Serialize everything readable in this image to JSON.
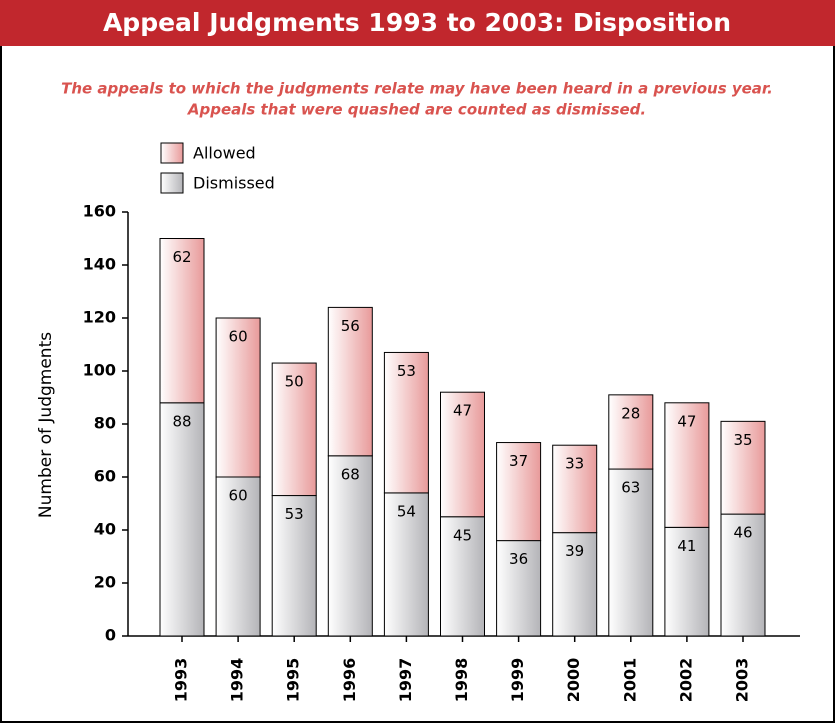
{
  "chart_data": {
    "type": "stacked_bar",
    "title": "Appeal Judgments 1993 to 2003: Disposition",
    "subtitle": [
      "The appeals to which the judgments relate may have been heard in a previous year.",
      "Appeals that were quashed are counted as dismissed."
    ],
    "ylabel": "Number of Judgments",
    "categories": [
      "1993",
      "1994",
      "1995",
      "1996",
      "1997",
      "1998",
      "1999",
      "2000",
      "2001",
      "2002",
      "2003"
    ],
    "series": [
      {
        "name": "Dismissed",
        "color": "#b4b4b8",
        "values": [
          88,
          60,
          53,
          68,
          54,
          45,
          36,
          39,
          63,
          41,
          46
        ]
      },
      {
        "name": "Allowed",
        "color": "#e89a9a",
        "values": [
          62,
          60,
          50,
          56,
          53,
          47,
          37,
          33,
          28,
          47,
          35
        ]
      }
    ],
    "ylim": [
      0,
      160
    ],
    "yticks": [
      0,
      20,
      40,
      60,
      80,
      100,
      120,
      140,
      160
    ],
    "legend": "top-left"
  }
}
